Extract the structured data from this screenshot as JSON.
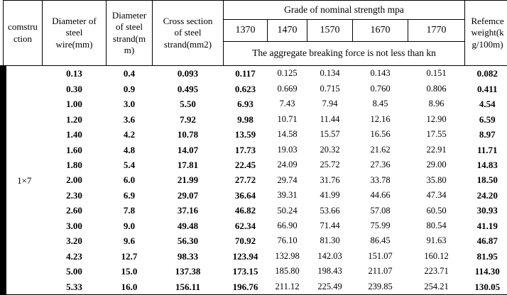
{
  "header": {
    "construction": "comstru\nction",
    "col_wire": "Diameter of\nsteel\nwire(mm)",
    "col_strand": "Diameter\nof steel\nstrand(m\nm)",
    "col_cross": "Cross section\nof steel\nstrand(mm2)",
    "grade_title": "Grade of nominal strength mpa",
    "grades": [
      "1370",
      "1470",
      "1570",
      "1670",
      "1770"
    ],
    "aggregate_note": "The aggregate breaking force is not less than kn",
    "col_weight": "Refemce\nweight(k\ng/100m)"
  },
  "body": {
    "construction_label": "1×7",
    "rows": [
      [
        "0.13",
        "0.4",
        "0.093",
        "0.117",
        "0.125",
        "0.134",
        "0.143",
        "0.151",
        "0.082"
      ],
      [
        "0.30",
        "0.9",
        "0.495",
        "0.623",
        "0.669",
        "0.715",
        "0.760",
        "0.806",
        "0.411"
      ],
      [
        "1.00",
        "3.0",
        "5.50",
        "6.93",
        "7.43",
        "7.94",
        "8.45",
        "8.96",
        "4.54"
      ],
      [
        "1.20",
        "3.6",
        "7.92",
        "9.98",
        "10.71",
        "11.44",
        "12.16",
        "12.90",
        "6.59"
      ],
      [
        "1.40",
        "4.2",
        "10.78",
        "13.59",
        "14.58",
        "15.57",
        "16.56",
        "17.55",
        "8.97"
      ],
      [
        "1.60",
        "4.8",
        "14.07",
        "17.73",
        "19.03",
        "20.32",
        "21.62",
        "22.91",
        "11.71"
      ],
      [
        "1.80",
        "5.4",
        "17.81",
        "22.45",
        "24.09",
        "25.72",
        "27.36",
        "29.00",
        "14.83"
      ],
      [
        "2.00",
        "6.0",
        "21.99",
        "27.72",
        "29.74",
        "31.76",
        "33.78",
        "35.80",
        "18.50"
      ],
      [
        "2.30",
        "6.9",
        "29.07",
        "36.64",
        "39.31",
        "41.99",
        "44.66",
        "47.34",
        "24.20"
      ],
      [
        "2.60",
        "7.8",
        "37.16",
        "46.82",
        "50.24",
        "53.66",
        "57.08",
        "60.50",
        "30.93"
      ],
      [
        "3.00",
        "9.0",
        "49.48",
        "62.34",
        "66.90",
        "71.44",
        "75.99",
        "80.54",
        "41.19"
      ],
      [
        "3.20",
        "9.6",
        "56.30",
        "70.92",
        "76.10",
        "81.30",
        "86.45",
        "91.63",
        "46.87"
      ],
      [
        "4.23",
        "12.7",
        "98.33",
        "123.94",
        "132.98",
        "142.03",
        "151.07",
        "160.12",
        "81.95"
      ],
      [
        "5.00",
        "15.0",
        "137.38",
        "173.15",
        "185.80",
        "198.43",
        "211.07",
        "223.71",
        "114.30"
      ],
      [
        "5.33",
        "16.0",
        "156.11",
        "196.76",
        "211.12",
        "225.49",
        "239.85",
        "254.21",
        "130.05"
      ]
    ]
  }
}
